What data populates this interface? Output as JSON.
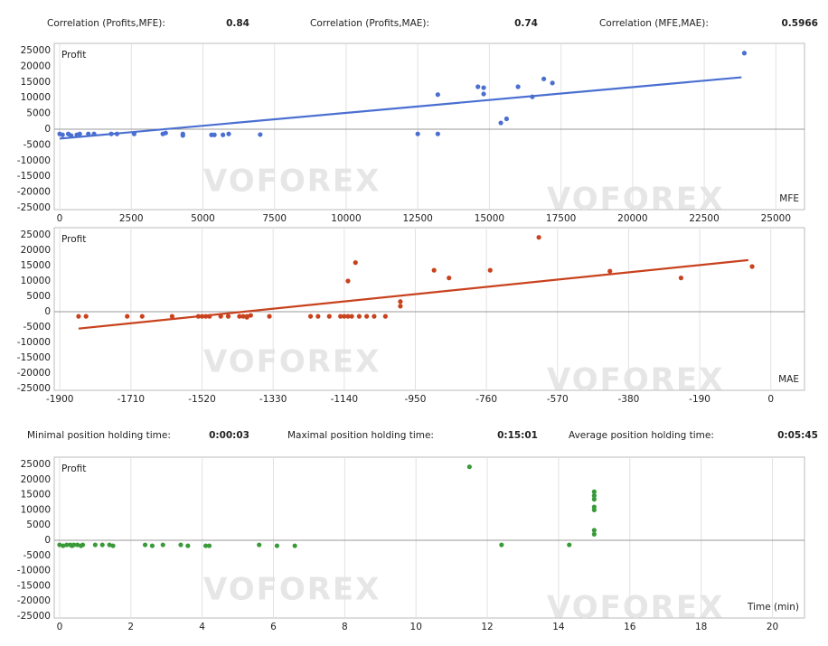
{
  "correlations": [
    {
      "label": "Correlation (Profits,MFE):",
      "value": "0.84"
    },
    {
      "label": "Correlation (Profits,MAE):",
      "value": "0.74"
    },
    {
      "label": "Correlation (MFE,MAE):",
      "value": "0.5966"
    }
  ],
  "holding_times": [
    {
      "label": "Minimal position holding time:",
      "value": "0:00:03"
    },
    {
      "label": "Maximal position holding time:",
      "value": "0:15:01"
    },
    {
      "label": "Average position holding time:",
      "value": "0:05:45"
    }
  ],
  "watermark": "VOFOREX",
  "chart_data": [
    {
      "type": "scatter",
      "y_label": "Profit",
      "x_label": "MFE",
      "color": "#4a6fd1",
      "xlim": [
        -190,
        26000
      ],
      "ylim": [
        -25000,
        25000
      ],
      "xticks": [
        0,
        2500,
        5000,
        7500,
        10000,
        12500,
        15000,
        17500,
        20000,
        22500,
        25000
      ],
      "yticks": [
        25000,
        20000,
        15000,
        10000,
        5000,
        0,
        -5000,
        -10000,
        -15000,
        -20000,
        -25000
      ],
      "x": [
        0,
        100,
        300,
        400,
        600,
        700,
        1000,
        1200,
        1800,
        2000,
        2600,
        3600,
        3700,
        4300,
        4300,
        5300,
        5400,
        5700,
        5900,
        7000,
        12500,
        13200,
        13200,
        14600,
        14800,
        14800,
        15400,
        15600,
        16000,
        16500,
        16900,
        17200,
        23900
      ],
      "values": [
        -1500,
        -1800,
        -1500,
        -2000,
        -1800,
        -1500,
        -1500,
        -1500,
        -1500,
        -1500,
        -1500,
        -1500,
        -1200,
        -1500,
        -2000,
        -1800,
        -1800,
        -1800,
        -1500,
        -1700,
        -1500,
        11000,
        -1500,
        13500,
        11200,
        13200,
        2000,
        3300,
        13500,
        10300,
        16000,
        14700,
        24200
      ],
      "trend": {
        "x": [
          0,
          23800
        ],
        "values": [
          -3000,
          16500
        ]
      }
    },
    {
      "type": "scatter",
      "y_label": "Profit",
      "x_label": "MAE",
      "color": "#c8421e",
      "xlim": [
        -1915,
        90
      ],
      "ylim": [
        -25000,
        25000
      ],
      "xticks": [
        -1900,
        -1710,
        -1520,
        -1330,
        -1140,
        -950,
        -760,
        -570,
        -380,
        -190,
        0
      ],
      "yticks": [
        25000,
        20000,
        15000,
        10000,
        5000,
        0,
        -5000,
        -10000,
        -15000,
        -20000,
        -25000
      ],
      "x": [
        -1850,
        -1830,
        -1720,
        -1680,
        -1600,
        -1530,
        -1520,
        -1510,
        -1500,
        -1470,
        -1450,
        -1420,
        -1410,
        -1400,
        -1390,
        -1400,
        -1340,
        -1230,
        -1210,
        -1180,
        -1150,
        -1140,
        -1130,
        -1120,
        -1130,
        -1110,
        -1100,
        -1080,
        -1060,
        -1030,
        -990,
        -990,
        -900,
        -860,
        -750,
        -620,
        -430,
        -240,
        -50
      ],
      "values": [
        -1500,
        -1500,
        -1500,
        -1500,
        -1500,
        -1500,
        -1500,
        -1500,
        -1500,
        -1500,
        -1500,
        -1500,
        -1500,
        -1500,
        -1200,
        -1800,
        -1500,
        -1500,
        -1500,
        -1500,
        -1500,
        -1500,
        -1500,
        -1500,
        10000,
        16000,
        -1500,
        -1500,
        -1500,
        -1500,
        1800,
        3300,
        13500,
        11000,
        13500,
        24200,
        13200,
        11000,
        14700
      ],
      "trend": {
        "x": [
          -1850,
          -60
        ],
        "values": [
          -5500,
          16800
        ]
      }
    },
    {
      "type": "scatter",
      "y_label": "Profit",
      "x_label": "Time (min)",
      "color": "#3a9a3a",
      "xlim": [
        -0.15,
        20.9
      ],
      "ylim": [
        -25000,
        25000
      ],
      "xticks": [
        0,
        2,
        4,
        6,
        8,
        10,
        12,
        14,
        16,
        18,
        20
      ],
      "yticks": [
        25000,
        20000,
        15000,
        10000,
        5000,
        0,
        -5000,
        -10000,
        -15000,
        -20000,
        -25000
      ],
      "x": [
        0,
        0.1,
        0.2,
        0.3,
        0.35,
        0.4,
        0.5,
        0.6,
        0.65,
        1.0,
        1.2,
        1.4,
        1.5,
        2.4,
        2.6,
        2.9,
        3.4,
        3.6,
        4.1,
        4.2,
        5.6,
        6.1,
        6.6,
        11.5,
        12.4,
        14.3,
        15.0,
        15.0,
        15.0,
        15.0,
        15.0,
        15.0,
        15.0
      ],
      "values": [
        -1500,
        -1800,
        -1500,
        -1500,
        -1800,
        -1500,
        -1500,
        -1800,
        -1500,
        -1500,
        -1500,
        -1500,
        -1800,
        -1500,
        -1800,
        -1500,
        -1500,
        -1800,
        -1800,
        -1800,
        -1500,
        -1800,
        -1800,
        24200,
        -1500,
        -1500,
        16000,
        14700,
        13500,
        11000,
        10000,
        3300,
        2000
      ]
    }
  ]
}
